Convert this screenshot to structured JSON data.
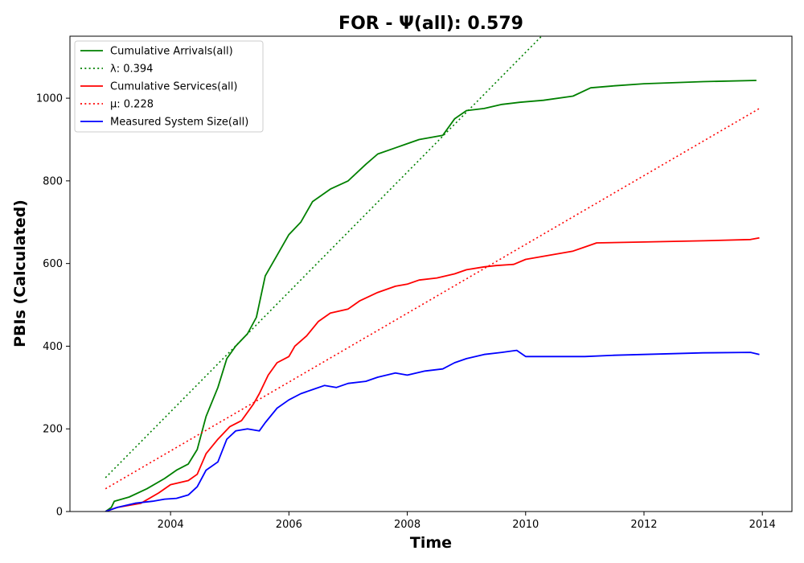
{
  "chart_data": {
    "type": "line",
    "title": "FOR -  Ψ(all): 0.579",
    "xlabel": "Time",
    "ylabel": "PBIs (Calculated)",
    "xlim": [
      2002.3,
      2014.5
    ],
    "ylim": [
      0,
      1150
    ],
    "xticks": [
      2004,
      2006,
      2008,
      2010,
      2012,
      2014
    ],
    "yticks": [
      0,
      200,
      400,
      600,
      800,
      1000
    ],
    "grid": false,
    "legend_position": "top-left",
    "series": [
      {
        "name": "Cumulative Arrivals(all)",
        "color": "#008000",
        "style": "solid",
        "x": [
          2002.9,
          2003.0,
          2003.05,
          2003.3,
          2003.6,
          2003.9,
          2004.1,
          2004.3,
          2004.45,
          2004.6,
          2004.8,
          2004.95,
          2005.1,
          2005.3,
          2005.45,
          2005.6,
          2005.8,
          2006.0,
          2006.2,
          2006.4,
          2006.7,
          2007.0,
          2007.3,
          2007.5,
          2007.8,
          2008.0,
          2008.2,
          2008.6,
          2008.8,
          2009.0,
          2009.3,
          2009.6,
          2009.9,
          2010.3,
          2010.8,
          2011.1,
          2011.5,
          2012.0,
          2013.0,
          2013.9
        ],
        "values": [
          0,
          10,
          25,
          35,
          55,
          80,
          100,
          115,
          150,
          230,
          300,
          370,
          400,
          430,
          470,
          570,
          620,
          670,
          700,
          750,
          780,
          800,
          840,
          865,
          880,
          890,
          900,
          910,
          950,
          970,
          975,
          985,
          990,
          995,
          1005,
          1025,
          1030,
          1035,
          1040,
          1043
        ]
      },
      {
        "name": "λ: 0.394",
        "color": "#008000",
        "style": "dotted",
        "x": [
          2002.9,
          2010.27
        ],
        "values": [
          82,
          1150
        ]
      },
      {
        "name": "Cumulative Services(all)",
        "color": "#ff0000",
        "style": "solid",
        "x": [
          2002.9,
          2003.1,
          2003.5,
          2003.8,
          2004.0,
          2004.3,
          2004.45,
          2004.6,
          2004.8,
          2005.0,
          2005.2,
          2005.4,
          2005.5,
          2005.65,
          2005.8,
          2006.0,
          2006.1,
          2006.3,
          2006.5,
          2006.7,
          2007.0,
          2007.2,
          2007.5,
          2007.8,
          2008.0,
          2008.2,
          2008.5,
          2008.8,
          2009.0,
          2009.3,
          2009.5,
          2009.8,
          2010.0,
          2010.4,
          2010.8,
          2011.0,
          2011.2,
          2012.0,
          2013.0,
          2013.8,
          2013.95
        ],
        "values": [
          0,
          10,
          20,
          45,
          65,
          75,
          90,
          140,
          175,
          205,
          220,
          260,
          285,
          330,
          360,
          375,
          400,
          425,
          460,
          480,
          490,
          510,
          530,
          545,
          550,
          560,
          565,
          575,
          585,
          592,
          595,
          598,
          610,
          620,
          630,
          640,
          650,
          652,
          655,
          658,
          662
        ]
      },
      {
        "name": "μ: 0.228",
        "color": "#ff0000",
        "style": "dotted",
        "x": [
          2002.9,
          2013.95
        ],
        "values": [
          55,
          975
        ]
      },
      {
        "name": "Measured System Size(all)",
        "color": "#0000ff",
        "style": "solid",
        "x": [
          2002.9,
          2003.1,
          2003.4,
          2003.7,
          2003.9,
          2004.1,
          2004.3,
          2004.45,
          2004.6,
          2004.8,
          2004.95,
          2005.1,
          2005.3,
          2005.5,
          2005.6,
          2005.8,
          2006.0,
          2006.2,
          2006.4,
          2006.6,
          2006.8,
          2007.0,
          2007.3,
          2007.5,
          2007.8,
          2008.0,
          2008.3,
          2008.6,
          2008.8,
          2009.0,
          2009.3,
          2009.6,
          2009.85,
          2010.0,
          2010.5,
          2011.0,
          2011.5,
          2012.0,
          2013.0,
          2013.8,
          2013.95
        ],
        "values": [
          0,
          10,
          20,
          25,
          30,
          32,
          40,
          60,
          100,
          120,
          175,
          195,
          200,
          195,
          215,
          250,
          270,
          285,
          295,
          305,
          300,
          310,
          315,
          325,
          335,
          330,
          340,
          345,
          360,
          370,
          380,
          385,
          390,
          375,
          375,
          375,
          378,
          380,
          384,
          385,
          380
        ]
      }
    ]
  }
}
